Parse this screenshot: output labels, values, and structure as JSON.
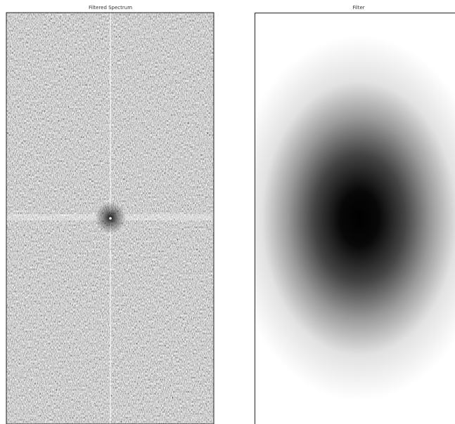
{
  "panels": [
    {
      "title": "Filtered Spectrum"
    },
    {
      "title": "Filter"
    }
  ]
}
